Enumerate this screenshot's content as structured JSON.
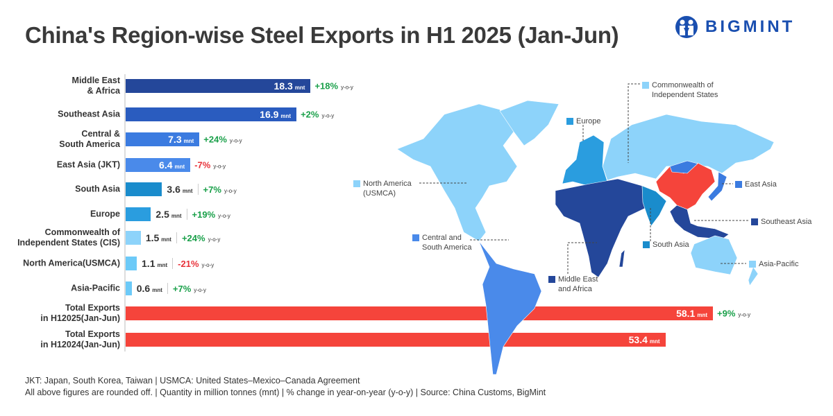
{
  "title": "China's Region-wise Steel Exports in H1 2025 (Jan-Jun)",
  "logo": {
    "text": "BIGMINT",
    "color": "#1a4fb0"
  },
  "chart_data": {
    "type": "bar",
    "orientation": "horizontal",
    "title": "China's Region-wise Steel Exports in H1 2025 (Jan-Jun)",
    "unit": "mnt",
    "yoy_suffix": "y-o-y",
    "categories": [
      "Middle East\n& Africa",
      "Southeast Asia",
      "Central &\nSouth America",
      "East Asia (JKT)",
      "South Asia",
      "Europe",
      "Commonwealth of\nIndependent States (CIS)",
      "North America(USMCA)",
      "Asia-Pacific",
      "Total Exports\nin H12025(Jan-Jun)",
      "Total Exports\nin H12024(Jan-Jun)"
    ],
    "values": [
      18.3,
      16.9,
      7.3,
      6.4,
      3.6,
      2.5,
      1.5,
      1.1,
      0.6,
      58.1,
      53.4
    ],
    "value_labels": [
      "18.3",
      "16.9",
      "7.3",
      "6.4",
      "3.6",
      "2.5",
      "1.5",
      "1.1",
      "0.6",
      "58.1",
      "53.4"
    ],
    "yoy": [
      "+18%",
      "+2%",
      "+24%",
      "-7%",
      "+7%",
      "+19%",
      "+24%",
      "-21%",
      "+7%",
      "+9%",
      ""
    ],
    "colors": [
      "#24479a",
      "#2a5cbf",
      "#3b7be0",
      "#4a8aea",
      "#1a8ccc",
      "#2a9ddf",
      "#8dd3fa",
      "#6ccaf8",
      "#6ccaf8",
      "#f5443b",
      "#f5443b"
    ],
    "positive_color": "#1aa04a",
    "negative_color": "#e8323a",
    "xlim": [
      0,
      60
    ],
    "grid": false
  },
  "map": {
    "legend": [
      {
        "label": "Commonwealth of\nIndependent States",
        "color": "#8dd3fa"
      },
      {
        "label": "Europe",
        "color": "#2a9ddf"
      },
      {
        "label": "North America\n(USMCA)",
        "color": "#8dd3fa"
      },
      {
        "label": "East Asia",
        "color": "#3b7be0"
      },
      {
        "label": "Southeast Asia",
        "color": "#24479a"
      },
      {
        "label": "Central and\nSouth America",
        "color": "#4a8aea"
      },
      {
        "label": "South Asia",
        "color": "#1a8ccc"
      },
      {
        "label": "Asia-Pacific",
        "color": "#8dd3fa"
      },
      {
        "label": "Middle East\nand Africa",
        "color": "#24479a"
      }
    ],
    "china_color": "#f5443b"
  },
  "footer": {
    "line1": "JKT: Japan, South Korea, Taiwan | USMCA: United States–Mexico–Canada Agreement",
    "line2": "All above figures are rounded off. | Quantity in million tonnes (mnt) | % change in year-on-year (y-o-y) | Source: China Customs, BigMint"
  }
}
